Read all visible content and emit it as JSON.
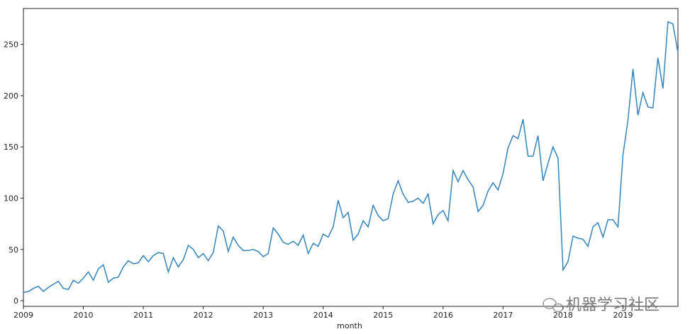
{
  "chart_data": {
    "type": "line",
    "xlabel": "month",
    "x": [
      2009,
      2009.083,
      2009.167,
      2009.25,
      2009.333,
      2009.417,
      2009.5,
      2009.583,
      2009.667,
      2009.75,
      2009.833,
      2009.917,
      2010,
      2010.083,
      2010.167,
      2010.25,
      2010.333,
      2010.417,
      2010.5,
      2010.583,
      2010.667,
      2010.75,
      2010.833,
      2010.917,
      2011,
      2011.083,
      2011.167,
      2011.25,
      2011.333,
      2011.417,
      2011.5,
      2011.583,
      2011.667,
      2011.75,
      2011.833,
      2011.917,
      2012,
      2012.083,
      2012.167,
      2012.25,
      2012.333,
      2012.417,
      2012.5,
      2012.583,
      2012.667,
      2012.75,
      2012.833,
      2012.917,
      2013,
      2013.083,
      2013.167,
      2013.25,
      2013.333,
      2013.417,
      2013.5,
      2013.583,
      2013.667,
      2013.75,
      2013.833,
      2013.917,
      2014,
      2014.083,
      2014.167,
      2014.25,
      2014.333,
      2014.417,
      2014.5,
      2014.583,
      2014.667,
      2014.75,
      2014.833,
      2014.917,
      2015,
      2015.083,
      2015.167,
      2015.25,
      2015.333,
      2015.417,
      2015.5,
      2015.583,
      2015.667,
      2015.75,
      2015.833,
      2015.917,
      2016,
      2016.083,
      2016.167,
      2016.25,
      2016.333,
      2016.417,
      2016.5,
      2016.583,
      2016.667,
      2016.75,
      2016.833,
      2016.917,
      2017,
      2017.083,
      2017.167,
      2017.25,
      2017.333,
      2017.417,
      2017.5,
      2017.583,
      2017.667,
      2017.75,
      2017.833,
      2017.917,
      2018,
      2018.083,
      2018.167,
      2018.25,
      2018.333,
      2018.417,
      2018.5,
      2018.583,
      2018.667,
      2018.75,
      2018.833,
      2018.917,
      2019,
      2019.083,
      2019.167,
      2019.25,
      2019.333,
      2019.417,
      2019.5,
      2019.583,
      2019.667,
      2019.75,
      2019.833,
      2019.917
    ],
    "series": [
      {
        "color": "#3383bc",
        "values": [
          8,
          9,
          12,
          14,
          9,
          13,
          16,
          19,
          12,
          11,
          20,
          17,
          22,
          28,
          20,
          31,
          35,
          18,
          22,
          23,
          33,
          39,
          36,
          37,
          44,
          38,
          44,
          47,
          46,
          28,
          42,
          33,
          40,
          54,
          50,
          42,
          46,
          39,
          47,
          73,
          68,
          48,
          62,
          54,
          49,
          49,
          50,
          48,
          43,
          46,
          71,
          65,
          57,
          55,
          58,
          54,
          64,
          46,
          56,
          53,
          65,
          62,
          72,
          98,
          81,
          86,
          59,
          65,
          78,
          72,
          93,
          83,
          78,
          80,
          104,
          117,
          104,
          96,
          97,
          100,
          95,
          104,
          75,
          84,
          88,
          78,
          127,
          116,
          127,
          118,
          111,
          87,
          93,
          107,
          115,
          108,
          124,
          149,
          161,
          158,
          177,
          141,
          141,
          161,
          117,
          134,
          150,
          139,
          30,
          38,
          63,
          61,
          60,
          53,
          72,
          76,
          62,
          79,
          79,
          72,
          142,
          176,
          226,
          181,
          203,
          189,
          188,
          237,
          207,
          272,
          270,
          242
        ]
      }
    ],
    "xlim": [
      2009,
      2019.917
    ],
    "xticks": [
      2009,
      2010,
      2011,
      2012,
      2013,
      2014,
      2015,
      2016,
      2017,
      2018,
      2019
    ],
    "ylim": [
      -5.5,
      285
    ],
    "yticks": [
      0,
      50,
      100,
      150,
      200,
      250
    ],
    "watermark": "机器学习社区"
  }
}
